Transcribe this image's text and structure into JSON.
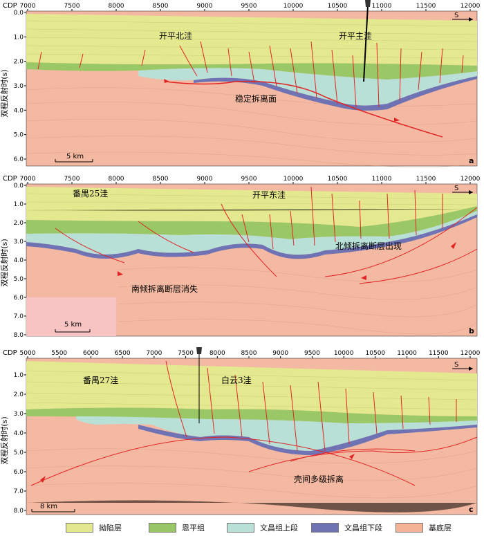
{
  "axis": {
    "cdp_label": "CDP",
    "y_title": "双程反射时(s)",
    "arrow_label": "S"
  },
  "panels": [
    {
      "id": "a",
      "letter": "a",
      "cdp_ticks": [
        "7000",
        "7500",
        "8000",
        "8500",
        "9000",
        "9500",
        "10000",
        "10500",
        "11000",
        "11500",
        "12000"
      ],
      "time_ticks": [
        "0.0",
        "1.0",
        "2.0",
        "3.0",
        "4.0",
        "5.0",
        "6.0"
      ],
      "scale_label": "5 km",
      "labels": [
        "开平北洼",
        "开平主洼",
        "稳定拆离面"
      ]
    },
    {
      "id": "b",
      "letter": "b",
      "cdp_ticks": [
        "7000",
        "7500",
        "8000",
        "8500",
        "9000",
        "9500",
        "10000",
        "10500",
        "11000",
        "11500",
        "12000"
      ],
      "time_ticks": [
        "0.0",
        "1.0",
        "2.0",
        "3.0",
        "4.0",
        "5.0",
        "6.0",
        "7.0",
        "8.0"
      ],
      "scale_label": "5 km",
      "labels": [
        "番禺25洼",
        "开平东洼",
        "北倾拆离断层出现",
        "南倾拆离断层消失"
      ]
    },
    {
      "id": "c",
      "letter": "c",
      "cdp_ticks": [
        "5000",
        "5500",
        "6000",
        "6500",
        "7000",
        "7500",
        "8000",
        "8500",
        "9000",
        "9500",
        "10000",
        "10500",
        "11000",
        "11500",
        "12000"
      ],
      "time_ticks": [
        "1.0",
        "2.0",
        "3.0",
        "4.0",
        "5.0",
        "6.0",
        "7.0",
        "8.0"
      ],
      "scale_label": "8 km",
      "labels": [
        "番禺27洼",
        "白云3洼",
        "壳间多级拆离"
      ]
    }
  ],
  "legend": [
    {
      "label": "拗陷层",
      "color": "#e3e88e"
    },
    {
      "label": "恩平组",
      "color": "#9ac765"
    },
    {
      "label": "文昌组上段",
      "color": "#b9e0d6"
    },
    {
      "label": "文昌组下段",
      "color": "#6f72b3"
    },
    {
      "label": "基底层",
      "color": "#f5b396"
    }
  ]
}
